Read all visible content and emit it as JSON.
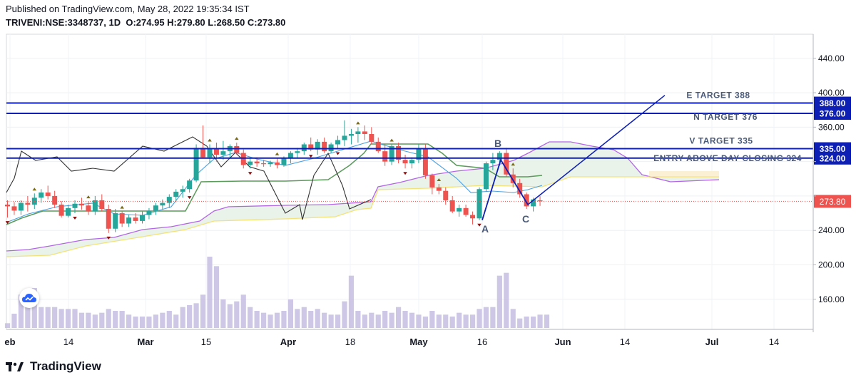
{
  "header": {
    "published": "Published on TradingView.com, May 28, 2022 19:35:34 IST",
    "symbol": "TRIVENI:NSE:3348737, 1D",
    "ohlc": "O:274.95 H:279.80 L:268.50 C:273.80"
  },
  "brand": {
    "name": "TradingView"
  },
  "colors": {
    "up": "#26a69a",
    "down": "#ef5350",
    "target_line": "#0d1fb5",
    "cloud_line": "#b266e6",
    "cloud_fill": "#e8f2e8",
    "base_line": "#5a9a5a",
    "conv_line": "#4aa0e0",
    "lag_line": "#333333",
    "volume": "#c5bde0",
    "price_tag": "#ef5350"
  },
  "chart_data": {
    "type": "candlestick",
    "symbol": "TRIVENI",
    "timeframe": "1D",
    "y_axis": {
      "ticks": [
        160,
        200,
        240,
        280,
        320,
        360,
        400,
        440
      ],
      "ylim": [
        125,
        468
      ]
    },
    "y_tick_labels": [
      "160.00",
      "200.00",
      "240.00",
      "",
      "",
      "360.00",
      "400.00",
      "440.00"
    ],
    "x_axis": {
      "labels": [
        "eb",
        "14",
        "Mar",
        "15",
        "Apr",
        "18",
        "May",
        "16",
        "Jun",
        "14",
        "Jul",
        "14"
      ]
    },
    "last_price": {
      "value": 273.8,
      "label": "273.80"
    },
    "horizontal_levels": [
      {
        "value": 388,
        "label": "388.00",
        "annotation": "E TARGET 388"
      },
      {
        "value": 376,
        "label": "376.00",
        "annotation": "N TARGET 376"
      },
      {
        "value": 335,
        "label": "335.00",
        "annotation": "V TARGET 335"
      },
      {
        "value": 324,
        "label": "324.00",
        "annotation": "ENTRY ABOVE DAY CLOSING 324"
      }
    ],
    "pattern_points": [
      {
        "label": "A",
        "value": 252
      },
      {
        "label": "B",
        "value": 322
      },
      {
        "label": "C",
        "value": 270
      }
    ],
    "projection": {
      "from": 270,
      "to": 397
    },
    "candles": [
      {
        "o": 270,
        "h": 275,
        "l": 255,
        "c": 268
      },
      {
        "o": 268,
        "h": 273,
        "l": 258,
        "c": 263
      },
      {
        "o": 263,
        "h": 275,
        "l": 258,
        "c": 272
      },
      {
        "o": 272,
        "h": 280,
        "l": 262,
        "c": 270
      },
      {
        "o": 270,
        "h": 283,
        "l": 265,
        "c": 278
      },
      {
        "o": 278,
        "h": 288,
        "l": 272,
        "c": 284
      },
      {
        "o": 284,
        "h": 292,
        "l": 276,
        "c": 280
      },
      {
        "o": 280,
        "h": 286,
        "l": 266,
        "c": 270
      },
      {
        "o": 270,
        "h": 274,
        "l": 255,
        "c": 257
      },
      {
        "o": 257,
        "h": 270,
        "l": 255,
        "c": 266
      },
      {
        "o": 266,
        "h": 275,
        "l": 260,
        "c": 271
      },
      {
        "o": 271,
        "h": 278,
        "l": 264,
        "c": 269
      },
      {
        "o": 269,
        "h": 274,
        "l": 258,
        "c": 262
      },
      {
        "o": 262,
        "h": 280,
        "l": 258,
        "c": 275
      },
      {
        "o": 275,
        "h": 282,
        "l": 262,
        "c": 265
      },
      {
        "o": 265,
        "h": 270,
        "l": 237,
        "c": 242
      },
      {
        "o": 242,
        "h": 265,
        "l": 238,
        "c": 260
      },
      {
        "o": 260,
        "h": 262,
        "l": 244,
        "c": 248
      },
      {
        "o": 248,
        "h": 258,
        "l": 244,
        "c": 255
      },
      {
        "o": 255,
        "h": 260,
        "l": 248,
        "c": 251
      },
      {
        "o": 251,
        "h": 262,
        "l": 248,
        "c": 258
      },
      {
        "o": 258,
        "h": 266,
        "l": 253,
        "c": 263
      },
      {
        "o": 263,
        "h": 272,
        "l": 258,
        "c": 269
      },
      {
        "o": 269,
        "h": 276,
        "l": 264,
        "c": 272
      },
      {
        "o": 272,
        "h": 282,
        "l": 266,
        "c": 279
      },
      {
        "o": 279,
        "h": 288,
        "l": 273,
        "c": 285
      },
      {
        "o": 285,
        "h": 292,
        "l": 278,
        "c": 288
      },
      {
        "o": 288,
        "h": 300,
        "l": 284,
        "c": 298
      },
      {
        "o": 298,
        "h": 340,
        "l": 296,
        "c": 336
      },
      {
        "o": 336,
        "h": 362,
        "l": 324,
        "c": 325
      },
      {
        "o": 325,
        "h": 340,
        "l": 318,
        "c": 335
      },
      {
        "o": 335,
        "h": 342,
        "l": 320,
        "c": 328
      },
      {
        "o": 328,
        "h": 344,
        "l": 322,
        "c": 332
      },
      {
        "o": 332,
        "h": 340,
        "l": 324,
        "c": 338
      },
      {
        "o": 338,
        "h": 342,
        "l": 328,
        "c": 330
      },
      {
        "o": 330,
        "h": 334,
        "l": 312,
        "c": 316
      },
      {
        "o": 316,
        "h": 324,
        "l": 312,
        "c": 320
      },
      {
        "o": 320,
        "h": 325,
        "l": 314,
        "c": 318
      },
      {
        "o": 318,
        "h": 322,
        "l": 314,
        "c": 317
      },
      {
        "o": 317,
        "h": 321,
        "l": 314,
        "c": 319
      },
      {
        "o": 319,
        "h": 324,
        "l": 312,
        "c": 316
      },
      {
        "o": 316,
        "h": 326,
        "l": 314,
        "c": 324
      },
      {
        "o": 324,
        "h": 332,
        "l": 318,
        "c": 330
      },
      {
        "o": 330,
        "h": 336,
        "l": 324,
        "c": 332
      },
      {
        "o": 332,
        "h": 342,
        "l": 328,
        "c": 340
      },
      {
        "o": 340,
        "h": 348,
        "l": 332,
        "c": 334
      },
      {
        "o": 334,
        "h": 346,
        "l": 328,
        "c": 343
      },
      {
        "o": 343,
        "h": 348,
        "l": 330,
        "c": 332
      },
      {
        "o": 332,
        "h": 342,
        "l": 330,
        "c": 340
      },
      {
        "o": 340,
        "h": 350,
        "l": 335,
        "c": 345
      },
      {
        "o": 345,
        "h": 368,
        "l": 338,
        "c": 350
      },
      {
        "o": 350,
        "h": 358,
        "l": 340,
        "c": 352
      },
      {
        "o": 352,
        "h": 360,
        "l": 342,
        "c": 355
      },
      {
        "o": 355,
        "h": 362,
        "l": 345,
        "c": 352
      },
      {
        "o": 352,
        "h": 360,
        "l": 340,
        "c": 343
      },
      {
        "o": 343,
        "h": 348,
        "l": 330,
        "c": 332
      },
      {
        "o": 332,
        "h": 340,
        "l": 315,
        "c": 320
      },
      {
        "o": 320,
        "h": 340,
        "l": 316,
        "c": 338
      },
      {
        "o": 338,
        "h": 342,
        "l": 318,
        "c": 322
      },
      {
        "o": 322,
        "h": 328,
        "l": 312,
        "c": 318
      },
      {
        "o": 318,
        "h": 325,
        "l": 312,
        "c": 322
      },
      {
        "o": 322,
        "h": 340,
        "l": 318,
        "c": 335
      },
      {
        "o": 335,
        "h": 340,
        "l": 300,
        "c": 304
      },
      {
        "o": 304,
        "h": 306,
        "l": 282,
        "c": 290
      },
      {
        "o": 290,
        "h": 294,
        "l": 282,
        "c": 286
      },
      {
        "o": 286,
        "h": 290,
        "l": 270,
        "c": 275
      },
      {
        "o": 275,
        "h": 280,
        "l": 260,
        "c": 262
      },
      {
        "o": 262,
        "h": 270,
        "l": 256,
        "c": 266
      },
      {
        "o": 266,
        "h": 270,
        "l": 256,
        "c": 258
      },
      {
        "o": 258,
        "h": 262,
        "l": 247,
        "c": 254
      },
      {
        "o": 254,
        "h": 290,
        "l": 252,
        "c": 288
      },
      {
        "o": 288,
        "h": 320,
        "l": 285,
        "c": 318
      },
      {
        "o": 318,
        "h": 330,
        "l": 310,
        "c": 322
      },
      {
        "o": 322,
        "h": 332,
        "l": 315,
        "c": 330
      },
      {
        "o": 330,
        "h": 336,
        "l": 302,
        "c": 305
      },
      {
        "o": 305,
        "h": 312,
        "l": 290,
        "c": 295
      },
      {
        "o": 295,
        "h": 300,
        "l": 278,
        "c": 282
      },
      {
        "o": 282,
        "h": 284,
        "l": 265,
        "c": 268
      },
      {
        "o": 268,
        "h": 278,
        "l": 262,
        "c": 276
      },
      {
        "o": 274.95,
        "h": 279.8,
        "l": 268.5,
        "c": 273.8
      }
    ],
    "volume": [
      5,
      15,
      35,
      40,
      42,
      22,
      22,
      22,
      20,
      20,
      20,
      16,
      16,
      14,
      16,
      20,
      18,
      18,
      14,
      12,
      12,
      12,
      14,
      16,
      18,
      14,
      22,
      24,
      26,
      35,
      75,
      65,
      30,
      25,
      28,
      35,
      22,
      18,
      16,
      14,
      16,
      18,
      30,
      20,
      22,
      18,
      20,
      16,
      14,
      14,
      28,
      55,
      18,
      14,
      16,
      14,
      18,
      16,
      22,
      18,
      16,
      14,
      12,
      18,
      14,
      14,
      12,
      16,
      14,
      14,
      20,
      22,
      22,
      55,
      58,
      20,
      10,
      12,
      12,
      14,
      14
    ]
  }
}
